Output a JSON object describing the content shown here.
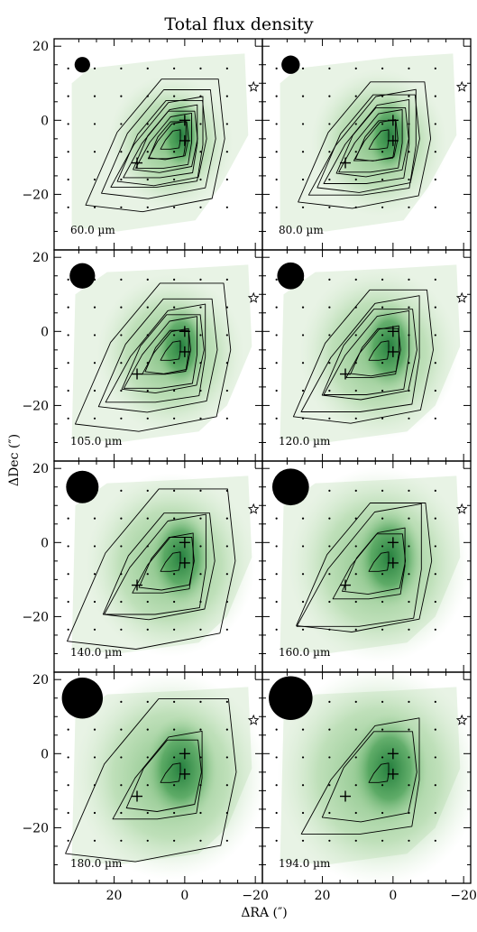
{
  "chart_data": {
    "type": "contour",
    "title": "Total flux density",
    "xlabel": "ΔRA (″)",
    "ylabel": "ΔDec (″)",
    "xlim": [
      37,
      -22
    ],
    "ylim": [
      -35,
      22
    ],
    "x_ticks": [
      20,
      0,
      -20
    ],
    "x_tick_labels": [
      "20",
      "0",
      "−20"
    ],
    "y_ticks": [
      20,
      0,
      -20
    ],
    "y_tick_labels": [
      "20",
      "0",
      "−20"
    ],
    "grid": false,
    "colormap": "white-to-green",
    "markers": {
      "crosses": [
        [
          0,
          0
        ],
        [
          0,
          -5.5
        ],
        [
          13.5,
          -11.5
        ]
      ],
      "star": [
        -19.5,
        9
      ]
    },
    "panels": [
      {
        "wavelength": 60.0,
        "label": "60.0 µm",
        "beam_radius": 2.2
      },
      {
        "wavelength": 80.0,
        "label": "80.0 µm",
        "beam_radius": 2.6
      },
      {
        "wavelength": 105.0,
        "label": "105.0 µm",
        "beam_radius": 3.6
      },
      {
        "wavelength": 120.0,
        "label": "120.0 µm",
        "beam_radius": 3.8
      },
      {
        "wavelength": 140.0,
        "label": "140.0 µm",
        "beam_radius": 4.6
      },
      {
        "wavelength": 160.0,
        "label": "160.0 µm",
        "beam_radius": 5.2
      },
      {
        "wavelength": 180.0,
        "label": "180.0 µm",
        "beam_radius": 5.8
      },
      {
        "wavelength": 194.0,
        "label": "194.0 µm",
        "beam_radius": 6.2
      }
    ]
  },
  "colors": {
    "fill_light": "#e8f3e5",
    "fill_dark": "#1f7a3a",
    "contour": "#000000",
    "axes": "#000000"
  }
}
